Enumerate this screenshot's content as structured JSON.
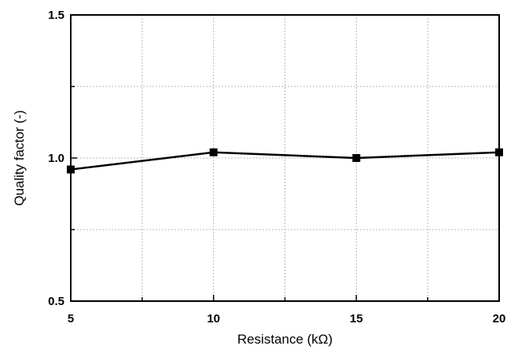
{
  "chart_data": {
    "type": "line",
    "title": "",
    "xlabel": "Resistance (kΩ)",
    "ylabel": "Quality factor (-)",
    "xlim": [
      5,
      20
    ],
    "ylim": [
      0.5,
      1.5
    ],
    "x_ticks": [
      "5",
      "10",
      "15",
      "20"
    ],
    "y_ticks": [
      "0.5",
      "1.0",
      "1.5"
    ],
    "grid": true,
    "legend": "none",
    "series": [
      {
        "x": [
          5,
          10,
          15,
          20
        ],
        "y": [
          0.96,
          1.02,
          1.0,
          1.02
        ],
        "color": "#000000",
        "marker": "square"
      }
    ]
  }
}
